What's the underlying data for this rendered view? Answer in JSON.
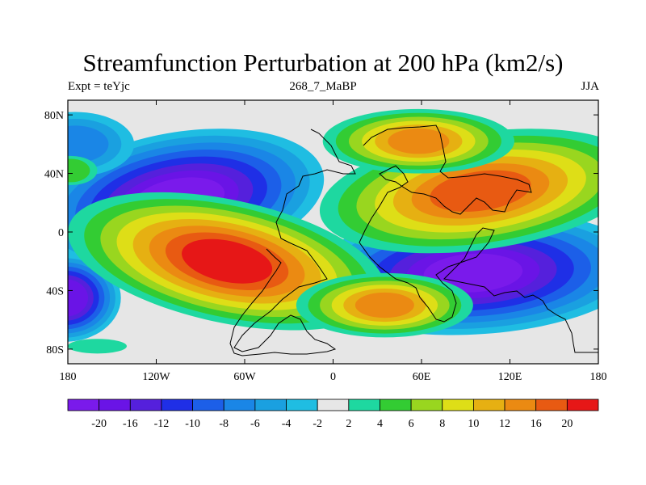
{
  "title": "Streamfunction Perturbation at 200 hPa (km2/s)",
  "subtitle_left": "Expt = teYjc",
  "subtitle_center": "268_7_MaBP",
  "subtitle_right": "JJA",
  "chart_data": {
    "type": "heatmap",
    "variable": "Streamfunction perturbation",
    "level": "200 hPa",
    "units": "km2/s",
    "season": "JJA",
    "xlim": [
      -180,
      180
    ],
    "ylim": [
      -90,
      90
    ],
    "x_ticks": [
      {
        "value": -180,
        "label": "180"
      },
      {
        "value": -120,
        "label": "120W"
      },
      {
        "value": -60,
        "label": "60W"
      },
      {
        "value": 0,
        "label": "0"
      },
      {
        "value": 60,
        "label": "60E"
      },
      {
        "value": 120,
        "label": "120E"
      },
      {
        "value": 180,
        "label": "180"
      }
    ],
    "y_ticks": [
      {
        "value": 80,
        "label": "80N"
      },
      {
        "value": 40,
        "label": "40N"
      },
      {
        "value": 0,
        "label": "0"
      },
      {
        "value": -40,
        "label": "40S"
      },
      {
        "value": -80,
        "label": "80S"
      }
    ],
    "contour_levels": [
      -20,
      -16,
      -12,
      -10,
      -8,
      -6,
      -4,
      -2,
      2,
      4,
      6,
      8,
      10,
      12,
      16,
      20
    ],
    "colorbar_colors": [
      "#7a1aeb",
      "#6a14e6",
      "#5520dc",
      "#1f2fe6",
      "#1c5fe8",
      "#1a86e6",
      "#1aa0e0",
      "#1fbde2",
      "#e6e6e6",
      "#1ed8a0",
      "#33cc33",
      "#99d61f",
      "#dede17",
      "#e6b012",
      "#eb8a12",
      "#e85a12",
      "#e61717"
    ],
    "features": [
      {
        "name": "Negative centre, N. Pacific / N. America",
        "lon": -110,
        "lat": 25,
        "value": -20
      },
      {
        "name": "Negative centre, S. Indian Ocean / Australia",
        "lon": 100,
        "lat": -28,
        "value": -20
      },
      {
        "name": "Negative centre, S. Pacific edge",
        "lon": -180,
        "lat": -45,
        "value": -14
      },
      {
        "name": "Positive centre, S. America / S. Atlantic",
        "lon": -70,
        "lat": -22,
        "value": 22
      },
      {
        "name": "Positive centre, Asia",
        "lon": 115,
        "lat": 30,
        "value": 18
      },
      {
        "name": "Positive centre, N. Eurasia",
        "lon": 58,
        "lat": 62,
        "value": 14
      },
      {
        "name": "Positive centre, S. Indian Ocean",
        "lon": 35,
        "lat": -50,
        "value": 13
      }
    ]
  }
}
